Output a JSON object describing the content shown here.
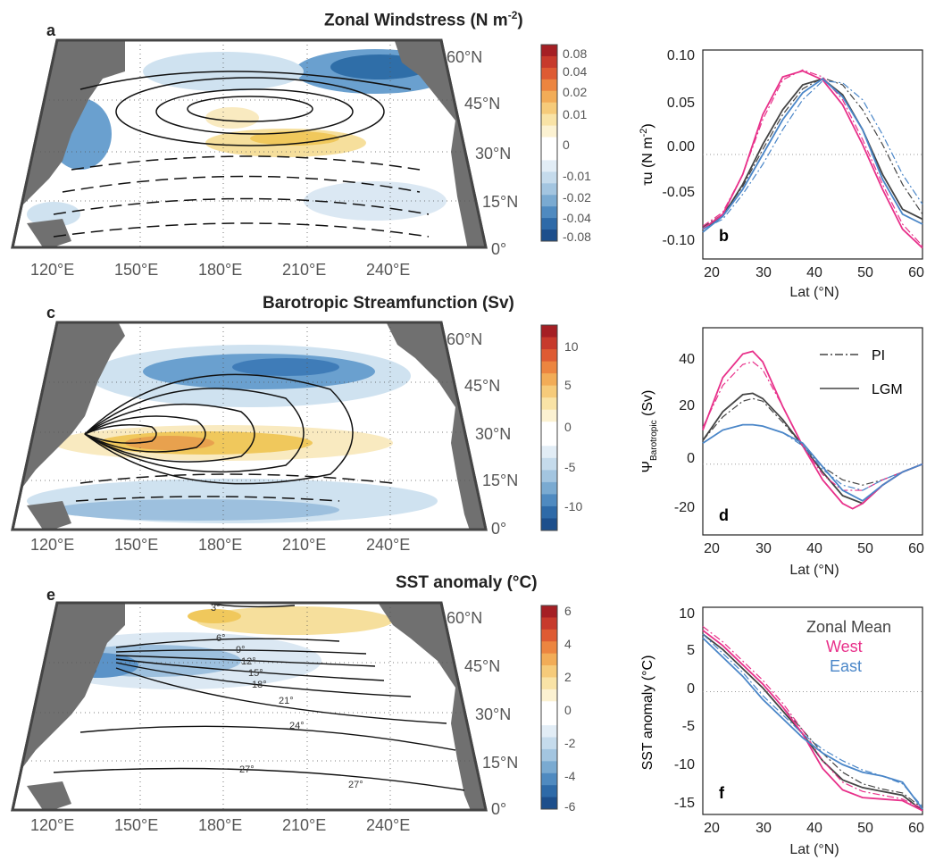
{
  "maps": [
    {
      "letter": "a",
      "title": "Zonal Windstress (N m",
      "title_sup": "-2",
      "title_tail": ")",
      "lat_labels": [
        "60°N",
        "45°N",
        "30°N",
        "15°N",
        "0°"
      ],
      "lon_labels": [
        "120°E",
        "150°E",
        "180°E",
        "210°E",
        "240°E"
      ],
      "colorbar": {
        "ticks": [
          "0.08",
          "0.04",
          "0.02",
          "0.01",
          "0",
          "-0.01",
          "-0.02",
          "-0.04",
          "-0.08"
        ]
      },
      "contour_labels": []
    },
    {
      "letter": "c",
      "title": "Barotropic Streamfunction (Sv)",
      "lat_labels": [
        "60°N",
        "45°N",
        "30°N",
        "15°N",
        "0°"
      ],
      "lon_labels": [
        "120°E",
        "150°E",
        "180°E",
        "210°E",
        "240°E"
      ],
      "colorbar": {
        "ticks": [
          "10",
          "5",
          "0",
          "-5",
          "-10"
        ]
      },
      "contour_labels": []
    },
    {
      "letter": "e",
      "title": "SST anomaly (°C)",
      "lat_labels": [
        "60°N",
        "45°N",
        "30°N",
        "15°N",
        "0°"
      ],
      "lon_labels": [
        "120°E",
        "150°E",
        "180°E",
        "210°E",
        "240°E"
      ],
      "colorbar": {
        "ticks": [
          "6",
          "4",
          "2",
          "0",
          "-2",
          "-4",
          "-6"
        ]
      },
      "contour_labels": [
        "3°",
        "6°",
        "9°",
        "12°",
        "15°",
        "18°",
        "21°",
        "24°",
        "27°",
        "27°"
      ]
    }
  ],
  "line_panels": [
    {
      "letter": "b",
      "ylabel": "τu (N m",
      "ylabel_sup": "-2",
      "ylabel_tail": ")",
      "xlabel": "Lat (°N)",
      "yticks": [
        "0.10",
        "0.05",
        "0.00",
        "-0.05",
        "-0.10"
      ],
      "xticks": [
        "20",
        "30",
        "40",
        "50",
        "60"
      ]
    },
    {
      "letter": "d",
      "ylabel": "Ψ",
      "ylabel_sub": "Barotropic",
      "ylabel_tail": " (Sv)",
      "xlabel": "Lat (°N)",
      "yticks": [
        "40",
        "20",
        "0",
        "-20"
      ],
      "xticks": [
        "20",
        "30",
        "40",
        "50",
        "60"
      ],
      "legend": [
        "PI",
        "LGM"
      ]
    },
    {
      "letter": "f",
      "ylabel": "SST anomaly (°C)",
      "xlabel": "Lat (°N)",
      "yticks": [
        "10",
        "5",
        "0",
        "-5",
        "-10",
        "-15"
      ],
      "xticks": [
        "20",
        "30",
        "40",
        "50",
        "60"
      ],
      "legend": [
        "Zonal Mean",
        "West",
        "East"
      ]
    }
  ],
  "colors": {
    "land": "#707070",
    "zonal_mean": "#444444",
    "west": "#e8308a",
    "east": "#4a86c8"
  },
  "chart_data": [
    {
      "type": "line",
      "panel": "b",
      "xlabel": "Lat (°N)",
      "ylabel": "τu (N m-2)",
      "xlim": [
        18,
        62
      ],
      "ylim": [
        -0.105,
        0.105
      ],
      "series": [
        {
          "style": "LGM",
          "color_key": "zonal_mean",
          "x": [
            18,
            22,
            26,
            30,
            34,
            38,
            42,
            46,
            50,
            54,
            58,
            62
          ],
          "y": [
            -0.075,
            -0.062,
            -0.03,
            0.01,
            0.045,
            0.07,
            0.076,
            0.06,
            0.025,
            -0.02,
            -0.055,
            -0.065
          ]
        },
        {
          "style": "PI",
          "color_key": "zonal_mean",
          "x": [
            18,
            22,
            26,
            30,
            34,
            38,
            42,
            46,
            50,
            54,
            58,
            62
          ],
          "y": [
            -0.073,
            -0.06,
            -0.032,
            0.005,
            0.04,
            0.066,
            0.077,
            0.07,
            0.045,
            0.01,
            -0.03,
            -0.06
          ]
        },
        {
          "style": "LGM",
          "color_key": "west",
          "x": [
            18,
            22,
            26,
            30,
            34,
            38,
            42,
            46,
            50,
            54,
            58,
            62
          ],
          "y": [
            -0.075,
            -0.06,
            -0.02,
            0.04,
            0.078,
            0.084,
            0.075,
            0.05,
            0.01,
            -0.035,
            -0.075,
            -0.094
          ]
        },
        {
          "style": "PI",
          "color_key": "west",
          "x": [
            18,
            22,
            26,
            30,
            34,
            38,
            42,
            46,
            50,
            54,
            58,
            62
          ],
          "y": [
            -0.072,
            -0.058,
            -0.02,
            0.035,
            0.075,
            0.085,
            0.078,
            0.055,
            0.015,
            -0.03,
            -0.07,
            -0.092
          ]
        },
        {
          "style": "LGM",
          "color_key": "east",
          "x": [
            18,
            22,
            26,
            30,
            34,
            38,
            42,
            46,
            50,
            54,
            58,
            62
          ],
          "y": [
            -0.078,
            -0.062,
            -0.035,
            0.0,
            0.035,
            0.062,
            0.076,
            0.058,
            0.025,
            -0.025,
            -0.06,
            -0.07
          ]
        },
        {
          "style": "PI",
          "color_key": "east",
          "x": [
            18,
            22,
            26,
            30,
            34,
            38,
            42,
            46,
            50,
            54,
            58,
            62
          ],
          "y": [
            -0.075,
            -0.065,
            -0.04,
            -0.01,
            0.025,
            0.055,
            0.074,
            0.072,
            0.055,
            0.02,
            -0.02,
            -0.05
          ]
        }
      ]
    },
    {
      "type": "line",
      "panel": "d",
      "xlabel": "Lat (°N)",
      "ylabel": "ΨBarotropic (Sv)",
      "xlim": [
        18,
        62
      ],
      "ylim": [
        -27,
        52
      ],
      "series": [
        {
          "style": "LGM",
          "color_key": "zonal_mean",
          "x": [
            18,
            22,
            26,
            28,
            30,
            34,
            38,
            42,
            46,
            50,
            54,
            58,
            62
          ],
          "y": [
            9,
            20,
            26.5,
            27,
            25,
            17,
            7,
            -3,
            -12,
            -15,
            -8,
            -3,
            0
          ]
        },
        {
          "style": "PI",
          "color_key": "zonal_mean",
          "x": [
            18,
            22,
            26,
            28,
            30,
            34,
            38,
            42,
            46,
            50,
            54,
            58,
            62
          ],
          "y": [
            9,
            18,
            24,
            25,
            24,
            16,
            7,
            -1,
            -6,
            -8,
            -6,
            -3,
            0
          ]
        },
        {
          "style": "LGM",
          "color_key": "west",
          "x": [
            18,
            22,
            26,
            28,
            30,
            34,
            38,
            42,
            46,
            48,
            50,
            54,
            58,
            62
          ],
          "y": [
            13,
            33,
            42,
            43,
            39,
            22,
            7,
            -6,
            -15,
            -17,
            -15,
            -8,
            -3,
            0
          ]
        },
        {
          "style": "PI",
          "color_key": "west",
          "x": [
            18,
            22,
            26,
            28,
            30,
            34,
            38,
            42,
            46,
            50,
            54,
            58,
            62
          ],
          "y": [
            14,
            30,
            38,
            39,
            36,
            22,
            7,
            -4,
            -10,
            -10,
            -6,
            -3,
            0
          ]
        },
        {
          "style": "LGM",
          "color_key": "east",
          "x": [
            18,
            22,
            26,
            28,
            30,
            34,
            38,
            42,
            46,
            50,
            54,
            58,
            62
          ],
          "y": [
            8,
            13,
            15,
            15,
            14.5,
            12,
            8,
            -1,
            -10,
            -14,
            -8,
            -3,
            0
          ]
        },
        {
          "style": "PI",
          "color_key": "east",
          "x": [
            18,
            22,
            26,
            28,
            30,
            34,
            38,
            42,
            46,
            50,
            54,
            58,
            62
          ],
          "y": [
            8,
            13,
            15,
            15,
            14.5,
            12,
            7,
            -2,
            -8,
            -10,
            -6,
            -3,
            0
          ]
        }
      ]
    },
    {
      "type": "line",
      "panel": "f",
      "xlabel": "Lat (°N)",
      "ylabel": "SST anomaly (°C)",
      "xlim": [
        18,
        62
      ],
      "ylim": [
        -16,
        11
      ],
      "series": [
        {
          "style": "LGM",
          "color_key": "zonal_mean",
          "x": [
            18,
            22,
            26,
            30,
            34,
            38,
            42,
            46,
            50,
            54,
            58,
            62
          ],
          "y": [
            7.5,
            5.5,
            3,
            0.5,
            -2.5,
            -5.5,
            -9,
            -11.5,
            -12.5,
            -13,
            -13.5,
            -15.5
          ]
        },
        {
          "style": "PI",
          "color_key": "zonal_mean",
          "x": [
            18,
            22,
            26,
            30,
            34,
            38,
            42,
            46,
            50,
            54,
            58,
            62
          ],
          "y": [
            8,
            6,
            3.5,
            1,
            -2,
            -5,
            -8,
            -10.5,
            -12,
            -12.7,
            -13.2,
            -15.2
          ]
        },
        {
          "style": "LGM",
          "color_key": "west",
          "x": [
            18,
            22,
            26,
            30,
            34,
            38,
            42,
            46,
            50,
            54,
            58,
            62
          ],
          "y": [
            8,
            6,
            3.5,
            1,
            -2,
            -5.5,
            -10,
            -12.8,
            -13.8,
            -14,
            -14.2,
            -15.5
          ]
        },
        {
          "style": "PI",
          "color_key": "west",
          "x": [
            18,
            22,
            26,
            30,
            34,
            38,
            42,
            46,
            50,
            54,
            58,
            62
          ],
          "y": [
            8.5,
            6.5,
            4,
            1.5,
            -1.5,
            -5,
            -9,
            -11.8,
            -13,
            -13.5,
            -14,
            -15.2
          ]
        },
        {
          "style": "LGM",
          "color_key": "east",
          "x": [
            18,
            22,
            26,
            30,
            34,
            38,
            42,
            46,
            50,
            54,
            58,
            62
          ],
          "y": [
            7,
            4.5,
            2,
            -1,
            -3.5,
            -6,
            -8,
            -9.5,
            -10.5,
            -11,
            -11.8,
            -15.3
          ]
        },
        {
          "style": "PI",
          "color_key": "east",
          "x": [
            18,
            22,
            26,
            30,
            34,
            38,
            42,
            46,
            50,
            54,
            58,
            62
          ],
          "y": [
            7.5,
            5,
            2.5,
            -0.5,
            -3,
            -5.5,
            -7.5,
            -9,
            -10.2,
            -11,
            -12,
            -15
          ]
        }
      ]
    }
  ]
}
